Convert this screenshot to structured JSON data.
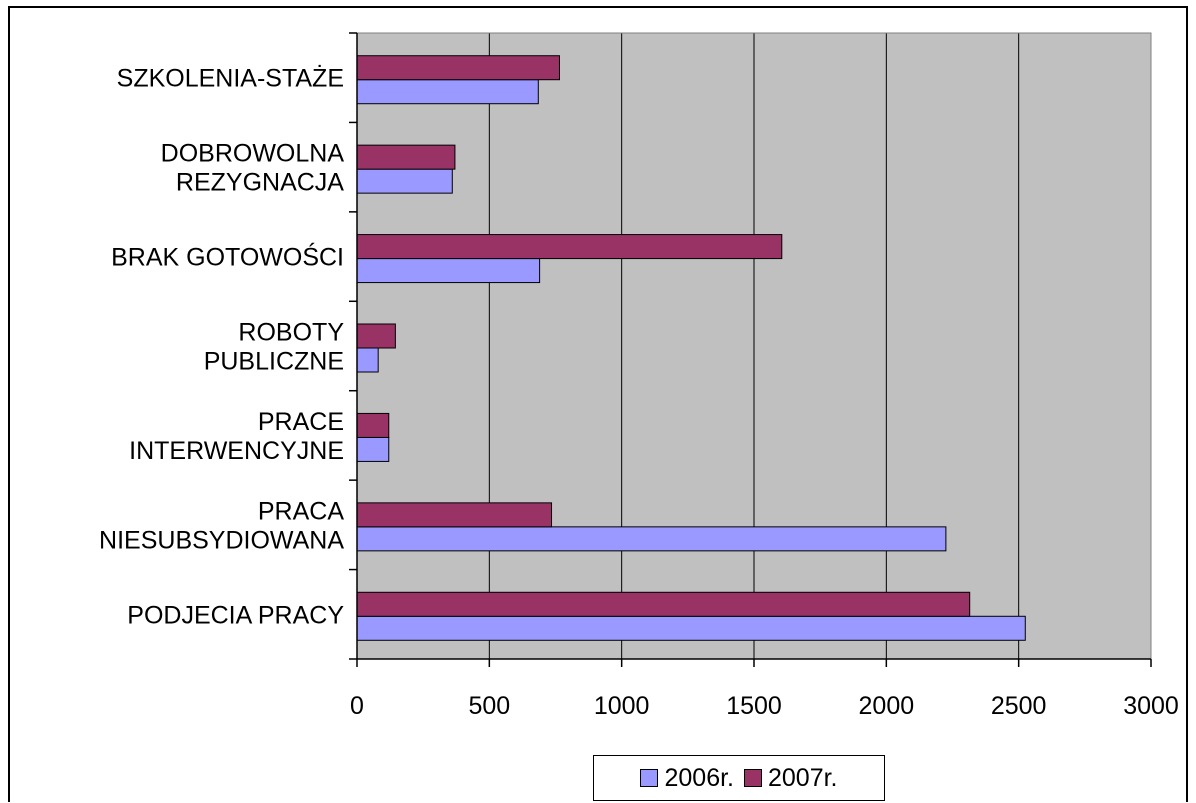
{
  "chart_data": {
    "type": "bar",
    "orientation": "horizontal",
    "categories": [
      "PODJECIA PRACY",
      "PRACA NIESUBSYDIOWANA",
      "PRACE INTERWENCYJNE",
      "ROBOTY PUBLICZNE",
      "BRAK GOTOWOŚCI",
      "DOBROWOLNA REZYGNACJA",
      "SZKOLENIA-STAŻE"
    ],
    "category_lines": [
      [
        "PODJECIA PRACY"
      ],
      [
        "PRACA",
        "NIESUBSYDIOWANA"
      ],
      [
        "PRACE",
        "INTERWENCYJNE"
      ],
      [
        "ROBOTY",
        "PUBLICZNE"
      ],
      [
        "BRAK GOTOWOŚCI"
      ],
      [
        "DOBROWOLNA",
        "REZYGNACJA"
      ],
      [
        "SZKOLENIA-STAŻE"
      ]
    ],
    "series": [
      {
        "name": "2006r.",
        "color": "#9999ff",
        "values": [
          2525,
          2225,
          120,
          80,
          690,
          360,
          685
        ]
      },
      {
        "name": "2007r.",
        "color": "#993366",
        "values": [
          2315,
          735,
          120,
          145,
          1605,
          370,
          765
        ]
      }
    ],
    "xlim": [
      0,
      3000
    ],
    "xticks": [
      0,
      500,
      1000,
      1500,
      2000,
      2500,
      3000
    ],
    "grid": "vertical",
    "plot_background": "#c0c0c0",
    "legend_position": "bottom"
  }
}
